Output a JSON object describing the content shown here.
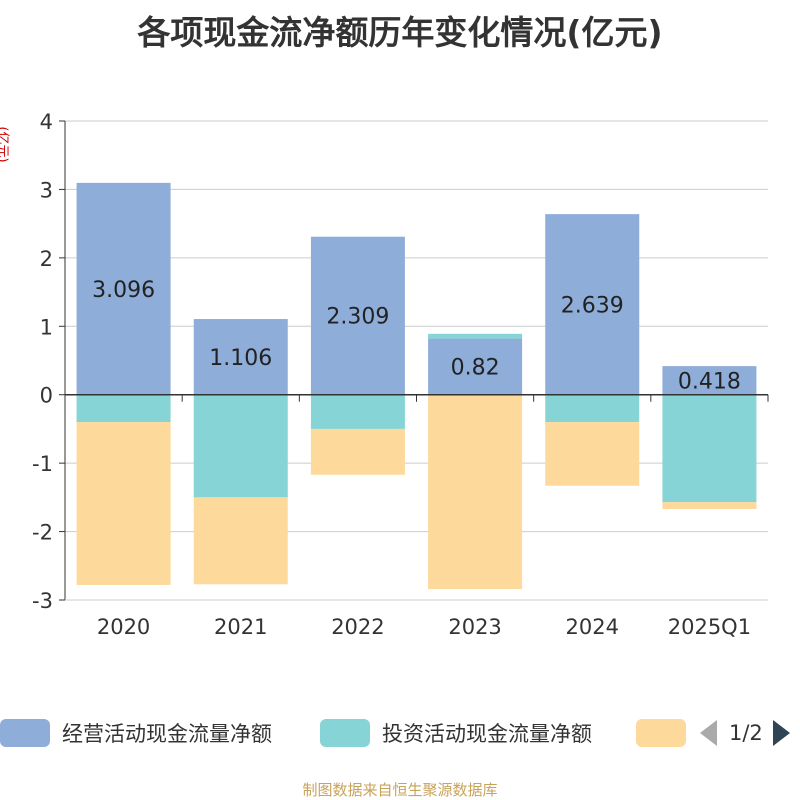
{
  "title": "各项现金流净额历年变化情况(亿元)",
  "ylabel": "(亿元)",
  "source": "制图数据来自恒生聚源数据库",
  "legend": {
    "items": [
      {
        "label": "经营活动现金流量净额",
        "color": "#8eadd9"
      },
      {
        "label": "投资活动现金流量净额",
        "color": "#86d4d6"
      },
      {
        "label": "",
        "color": "#fdd99b"
      }
    ],
    "page": "1/2"
  },
  "chart_data": {
    "type": "bar",
    "stacked": true,
    "categories": [
      "2020",
      "2021",
      "2022",
      "2023",
      "2024",
      "2025Q1"
    ],
    "series": [
      {
        "name": "经营活动现金流量净额",
        "color": "#8eadd9",
        "values": [
          3.096,
          1.106,
          2.309,
          0.82,
          2.639,
          0.418
        ],
        "labels": [
          "3.096",
          "1.106",
          "2.309",
          "0.82",
          "2.639",
          "0.418"
        ]
      },
      {
        "name": "投资活动现金流量净额",
        "color": "#86d4d6",
        "values": [
          -0.4,
          -1.5,
          -0.5,
          0.07,
          -0.4,
          -1.57
        ]
      },
      {
        "color": "#fdd99b",
        "values": [
          -2.38,
          -1.27,
          -0.67,
          -2.84,
          -0.93,
          -0.1
        ]
      }
    ],
    "ylim": [
      -3,
      4
    ],
    "yticks": [
      -3,
      -2,
      -1,
      0,
      1,
      2,
      3,
      4
    ],
    "grid": true
  }
}
